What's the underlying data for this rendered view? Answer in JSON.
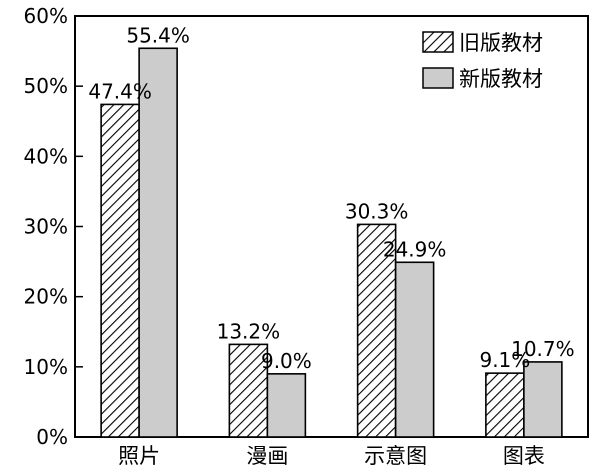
{
  "chart_data": {
    "type": "bar",
    "title": "",
    "xlabel": "",
    "ylabel": "",
    "categories": [
      "照片",
      "漫画",
      "示意图",
      "图表"
    ],
    "series": [
      {
        "name": "旧版教材",
        "values": [
          47.4,
          13.2,
          30.3,
          9.1
        ],
        "value_labels": [
          "47.4%",
          "13.2%",
          "30.3%",
          "9.1%"
        ],
        "fill": "hatched",
        "color": "#000000"
      },
      {
        "name": "新版教材",
        "values": [
          55.4,
          9.0,
          24.9,
          10.7
        ],
        "value_labels": [
          "55.4%",
          "9.0%",
          "24.9%",
          "10.7%"
        ],
        "fill": "solid",
        "color": "#cccccc"
      }
    ],
    "ylim": [
      0,
      60
    ],
    "yticks": [
      0,
      10,
      20,
      30,
      40,
      50,
      60
    ],
    "ytick_labels": [
      "0%",
      "10%",
      "20%",
      "30%",
      "40%",
      "50%",
      "60%"
    ],
    "grid": false,
    "legend_position": "top-right"
  }
}
